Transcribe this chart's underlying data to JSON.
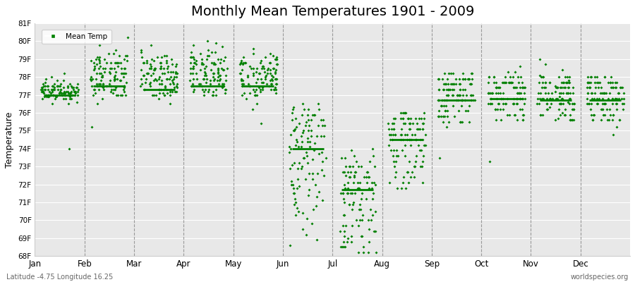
{
  "title": "Monthly Mean Temperatures 1901 - 2009",
  "ylabel": "Temperature",
  "xlabel_bottom_left": "Latitude -4.75 Longitude 16.25",
  "xlabel_bottom_right": "worldspecies.org",
  "ylim": [
    68,
    81
  ],
  "months": [
    "Jan",
    "Feb",
    "Mar",
    "Apr",
    "May",
    "Jun",
    "Jul",
    "Aug",
    "Sep",
    "Oct",
    "Nov",
    "Dec"
  ],
  "marker_color": "#008000",
  "background_color": "#ffffff",
  "plot_bg_color": "#e8e8e8",
  "title_fontsize": 14,
  "monthly_means": [
    77.0,
    77.5,
    77.3,
    77.5,
    77.5,
    74.0,
    71.7,
    74.5,
    76.7,
    76.8,
    76.7,
    76.7
  ],
  "monthly_data": {
    "Jan": [
      76.8,
      76.6,
      76.5,
      77.1,
      76.9,
      77.0,
      77.2,
      77.3,
      77.8,
      77.5,
      77.4,
      77.6,
      77.0,
      76.9,
      77.0,
      77.3,
      77.2,
      77.6,
      77.8,
      78.0,
      78.2,
      77.9,
      77.5,
      77.4,
      77.3,
      77.1,
      77.0,
      77.2,
      77.4,
      77.3,
      77.1,
      77.5,
      77.6,
      77.4,
      77.0,
      76.8,
      76.5,
      76.9,
      77.2,
      77.5,
      77.3,
      77.1,
      77.4,
      77.2,
      77.0,
      76.8,
      77.0,
      77.3,
      77.1,
      76.9,
      77.2,
      77.6,
      77.4,
      77.0,
      76.8,
      77.1,
      77.3,
      77.5,
      77.2,
      77.0,
      76.9,
      77.1,
      77.4,
      77.6,
      77.3,
      77.1,
      77.0,
      77.2,
      77.5,
      77.3,
      77.1,
      77.0,
      77.3,
      77.5,
      77.2,
      77.0,
      76.9,
      77.1,
      77.3,
      77.5,
      77.4,
      77.2,
      77.0,
      77.2,
      77.5,
      77.3,
      77.1,
      77.0,
      77.2,
      77.5,
      77.7,
      77.4,
      77.1,
      77.0,
      76.8,
      77.1,
      77.3,
      77.5,
      77.2,
      77.0,
      76.8,
      77.1,
      77.3,
      77.5,
      77.2,
      77.0,
      76.9,
      74.0,
      77.2
    ],
    "Feb": [
      77.0,
      77.5,
      78.2,
      79.2,
      78.8,
      78.5,
      78.0,
      77.8,
      77.5,
      77.4,
      77.2,
      77.0,
      77.5,
      78.0,
      78.5,
      79.0,
      78.8,
      78.5,
      78.2,
      78.0,
      77.8,
      77.5,
      77.3,
      77.1,
      77.4,
      77.7,
      78.1,
      78.5,
      78.8,
      79.0,
      79.2,
      78.9,
      78.6,
      78.3,
      78.0,
      77.8,
      77.5,
      77.3,
      77.6,
      77.9,
      78.2,
      78.5,
      78.8,
      79.0,
      79.3,
      80.2,
      79.8,
      79.5,
      79.2,
      78.9,
      78.6,
      78.3,
      78.0,
      77.8,
      77.5,
      77.3,
      77.0,
      76.8,
      76.5,
      75.2,
      77.1,
      77.4,
      77.8,
      78.2,
      78.5,
      78.8,
      79.1,
      78.8,
      78.5,
      78.2,
      77.9,
      77.6,
      77.3,
      77.0,
      77.3,
      77.6,
      77.9,
      78.2,
      78.5,
      78.8,
      79.1,
      78.8,
      78.5,
      78.2,
      77.9,
      77.6,
      77.3,
      77.0,
      77.2,
      77.5,
      77.8,
      78.1,
      78.4,
      78.7,
      79.0,
      79.3,
      78.9,
      78.6,
      78.3,
      77.9,
      77.6,
      77.3,
      77.0,
      77.3,
      77.6,
      77.9,
      78.2,
      78.5,
      78.8
    ],
    "Mar": [
      77.0,
      77.2,
      77.5,
      77.8,
      78.1,
      78.4,
      78.7,
      78.5,
      78.2,
      77.9,
      77.6,
      77.3,
      77.0,
      77.3,
      77.6,
      77.9,
      78.2,
      78.5,
      79.8,
      79.5,
      79.2,
      78.9,
      78.6,
      78.3,
      78.0,
      77.8,
      77.5,
      77.2,
      77.0,
      77.2,
      77.5,
      77.8,
      78.1,
      78.4,
      78.7,
      79.0,
      78.8,
      78.5,
      78.2,
      77.9,
      77.6,
      77.3,
      77.1,
      77.4,
      77.7,
      78.0,
      78.3,
      78.6,
      78.9,
      79.2,
      78.9,
      78.6,
      78.3,
      78.0,
      77.7,
      77.4,
      77.1,
      76.8,
      76.5,
      77.0,
      77.3,
      77.6,
      77.9,
      78.2,
      78.5,
      78.8,
      79.1,
      79.4,
      79.1,
      78.8,
      78.5,
      78.2,
      77.9,
      77.6,
      77.3,
      77.0,
      77.3,
      77.6,
      77.9,
      78.2,
      78.5,
      78.8,
      79.1,
      78.8,
      78.5,
      78.2,
      77.9,
      77.6,
      77.3,
      77.0,
      77.2,
      77.5,
      77.8,
      78.1,
      78.4,
      78.7,
      79.0,
      78.8,
      78.5,
      78.2,
      77.9,
      77.6,
      77.3,
      77.1,
      77.4,
      77.7,
      78.0,
      78.3,
      78.6
    ],
    "Apr": [
      77.0,
      77.3,
      77.6,
      77.9,
      78.2,
      78.5,
      78.8,
      79.1,
      79.4,
      79.7,
      79.9,
      80.0,
      79.8,
      79.5,
      79.2,
      78.9,
      78.6,
      78.3,
      78.0,
      77.8,
      77.5,
      77.2,
      77.0,
      77.3,
      77.6,
      77.9,
      78.2,
      78.5,
      78.8,
      79.1,
      79.4,
      79.1,
      78.8,
      78.5,
      78.2,
      77.9,
      77.6,
      77.3,
      77.0,
      77.3,
      77.6,
      77.9,
      78.2,
      78.5,
      78.8,
      79.1,
      79.4,
      79.1,
      78.8,
      78.5,
      78.2,
      77.9,
      77.6,
      77.3,
      77.0,
      77.2,
      77.5,
      77.8,
      78.1,
      78.4,
      78.7,
      79.0,
      78.8,
      78.5,
      78.2,
      77.9,
      77.6,
      77.3,
      77.1,
      77.4,
      77.7,
      78.0,
      78.3,
      78.6,
      78.9,
      79.2,
      79.0,
      78.7,
      78.4,
      78.1,
      77.8,
      77.5,
      77.2,
      77.5,
      77.8,
      78.1,
      78.4,
      78.7,
      79.0,
      79.3,
      79.0,
      78.7,
      78.4,
      78.1,
      77.8,
      77.5,
      77.2,
      77.5,
      77.8,
      78.1,
      78.4,
      78.7,
      79.0,
      78.8,
      78.5,
      78.2,
      77.9,
      77.6,
      77.3
    ],
    "May": [
      77.5,
      77.8,
      78.1,
      78.4,
      78.7,
      79.0,
      79.3,
      79.6,
      79.3,
      79.0,
      78.7,
      78.4,
      78.1,
      77.8,
      77.5,
      77.2,
      77.0,
      77.3,
      77.6,
      77.9,
      78.2,
      78.5,
      78.8,
      79.1,
      78.8,
      78.5,
      78.2,
      77.9,
      77.6,
      77.3,
      77.5,
      77.8,
      78.1,
      78.4,
      78.7,
      79.0,
      78.8,
      78.5,
      78.2,
      77.9,
      77.6,
      77.3,
      77.1,
      77.4,
      77.7,
      78.0,
      78.3,
      78.6,
      78.9,
      79.2,
      78.9,
      78.6,
      78.3,
      78.0,
      77.7,
      77.4,
      77.1,
      76.8,
      76.5,
      76.2,
      75.4,
      77.0,
      77.3,
      77.6,
      77.9,
      78.2,
      78.5,
      78.8,
      79.1,
      78.8,
      78.5,
      78.2,
      77.9,
      77.6,
      77.3,
      77.0,
      77.3,
      77.6,
      77.9,
      78.2,
      78.5,
      78.8,
      79.1,
      78.8,
      78.5,
      78.2,
      77.9,
      77.6,
      77.3,
      77.0,
      77.2,
      77.5,
      77.8,
      78.1,
      78.4,
      78.7,
      79.0,
      78.8,
      78.5,
      78.2,
      77.9,
      77.6,
      77.3,
      77.1,
      77.4,
      77.7,
      78.0,
      78.3,
      78.6
    ],
    "Jun": [
      76.5,
      76.2,
      75.9,
      75.6,
      75.3,
      75.0,
      74.7,
      74.4,
      74.1,
      73.8,
      73.5,
      73.2,
      72.9,
      72.6,
      72.3,
      72.0,
      71.8,
      71.5,
      74.1,
      74.4,
      74.7,
      75.0,
      75.3,
      75.6,
      75.9,
      76.2,
      76.5,
      76.2,
      75.9,
      75.6,
      75.3,
      75.0,
      74.7,
      74.4,
      74.1,
      73.8,
      73.5,
      73.2,
      72.9,
      72.6,
      72.3,
      72.0,
      71.8,
      71.5,
      71.2,
      70.9,
      70.6,
      70.3,
      73.0,
      73.3,
      73.6,
      73.9,
      74.2,
      74.5,
      74.8,
      75.1,
      75.4,
      75.7,
      76.0,
      76.3,
      75.5,
      75.2,
      74.9,
      74.6,
      74.3,
      74.0,
      73.7,
      73.4,
      73.1,
      72.8,
      72.5,
      72.2,
      71.9,
      71.6,
      71.3,
      71.0,
      70.7,
      70.4,
      70.1,
      69.8,
      69.5,
      69.2,
      68.9,
      68.6,
      70.5,
      70.8,
      71.1,
      71.4,
      71.7,
      72.0,
      72.3,
      72.6,
      72.9,
      73.2,
      73.5,
      73.8,
      74.1,
      74.4,
      74.7,
      75.0,
      75.3,
      75.6,
      75.9,
      76.2,
      75.9,
      75.6,
      75.3,
      75.0,
      74.7
    ],
    "Jul": [
      71.5,
      71.2,
      70.9,
      70.6,
      70.3,
      70.0,
      69.7,
      69.4,
      69.1,
      68.8,
      68.5,
      71.0,
      71.5,
      72.0,
      72.5,
      73.0,
      73.5,
      74.0,
      73.5,
      73.0,
      72.5,
      72.0,
      71.5,
      71.0,
      70.5,
      70.0,
      69.5,
      69.0,
      68.5,
      68.2,
      71.5,
      71.8,
      72.1,
      72.4,
      72.7,
      73.0,
      72.7,
      72.4,
      72.1,
      71.8,
      71.5,
      71.2,
      70.9,
      70.6,
      70.3,
      70.0,
      69.7,
      69.4,
      69.1,
      68.8,
      68.5,
      68.2,
      71.5,
      71.8,
      72.1,
      72.4,
      72.7,
      73.0,
      73.3,
      73.6,
      73.9,
      73.6,
      73.3,
      73.0,
      72.7,
      72.4,
      72.1,
      71.8,
      71.5,
      71.2,
      70.9,
      70.6,
      70.3,
      70.0,
      69.7,
      69.4,
      69.1,
      68.8,
      68.5,
      68.2,
      71.5,
      71.8,
      72.1,
      72.4,
      72.7,
      73.0,
      72.7,
      72.4,
      72.1,
      71.8,
      71.5,
      71.2,
      70.9,
      70.6,
      70.3,
      70.0,
      69.7,
      69.4,
      69.1,
      68.8,
      68.5,
      68.2,
      71.5,
      71.8,
      72.1,
      72.4,
      72.7,
      73.0,
      72.7
    ],
    "Aug": [
      74.5,
      74.8,
      75.1,
      75.4,
      75.7,
      76.0,
      75.7,
      75.4,
      75.1,
      74.8,
      74.5,
      74.2,
      73.9,
      73.6,
      73.3,
      73.0,
      72.7,
      72.4,
      72.1,
      71.8,
      74.5,
      74.8,
      75.1,
      75.4,
      75.7,
      76.0,
      75.7,
      75.4,
      75.1,
      74.8,
      74.5,
      74.2,
      73.9,
      73.6,
      73.3,
      73.0,
      74.5,
      74.8,
      75.1,
      75.4,
      75.7,
      76.0,
      75.7,
      75.4,
      75.1,
      74.8,
      74.5,
      74.2,
      73.9,
      73.6,
      73.3,
      73.0,
      72.7,
      72.4,
      72.1,
      74.5,
      74.8,
      75.1,
      75.4,
      75.7,
      76.0,
      75.7,
      75.4,
      75.1,
      74.8,
      74.5,
      74.2,
      73.9,
      73.6,
      73.3,
      73.0,
      72.7,
      72.4,
      72.1,
      71.8,
      74.5,
      74.8,
      75.1,
      75.4,
      75.7,
      76.0,
      75.7,
      75.4,
      75.1,
      74.8,
      74.5,
      74.2,
      73.9,
      73.6,
      73.3,
      73.0,
      72.7,
      72.4,
      72.1,
      71.8,
      74.5,
      74.8,
      75.1,
      75.4,
      75.7,
      76.0,
      75.7,
      75.4,
      75.1,
      74.8,
      74.5,
      74.2,
      73.9,
      73.6
    ],
    "Sep": [
      76.7,
      77.0,
      77.3,
      77.6,
      77.9,
      78.2,
      77.9,
      77.6,
      77.3,
      77.0,
      76.7,
      76.4,
      76.1,
      75.8,
      75.5,
      75.2,
      76.7,
      77.0,
      77.3,
      77.6,
      77.9,
      78.2,
      77.9,
      77.6,
      77.3,
      77.0,
      76.7,
      76.4,
      76.1,
      75.8,
      76.7,
      77.0,
      77.3,
      77.6,
      77.9,
      78.2,
      77.9,
      77.6,
      77.3,
      77.0,
      76.7,
      76.4,
      76.1,
      75.8,
      75.5,
      76.7,
      77.0,
      77.3,
      77.6,
      77.9,
      78.2,
      77.9,
      77.6,
      77.3,
      77.0,
      76.7,
      76.4,
      76.1,
      75.8,
      75.5,
      76.7,
      77.0,
      77.3,
      77.6,
      77.9,
      78.2,
      77.9,
      77.6,
      77.3,
      77.0,
      76.7,
      76.4,
      76.1,
      75.8,
      75.5,
      76.7,
      77.0,
      77.3,
      77.6,
      77.9,
      78.2,
      77.9,
      77.6,
      77.3,
      77.0,
      76.7,
      76.4,
      76.1,
      75.8,
      75.5,
      76.7,
      77.0,
      77.3,
      77.6,
      77.9,
      78.2,
      77.9,
      77.6,
      77.3,
      77.0,
      76.7,
      76.4,
      76.1,
      75.8,
      75.5,
      73.5,
      76.7,
      77.0,
      77.3
    ],
    "Oct": [
      76.5,
      76.8,
      77.1,
      77.4,
      77.7,
      78.0,
      77.7,
      77.4,
      77.1,
      76.8,
      76.5,
      76.2,
      75.9,
      75.6,
      76.5,
      76.8,
      77.1,
      77.4,
      77.7,
      78.0,
      78.3,
      78.6,
      78.3,
      78.0,
      77.7,
      77.4,
      77.1,
      76.8,
      76.5,
      76.2,
      76.5,
      76.8,
      77.1,
      77.4,
      77.7,
      78.0,
      77.7,
      77.4,
      77.1,
      76.8,
      76.5,
      76.2,
      75.9,
      75.6,
      76.5,
      76.8,
      77.1,
      77.4,
      77.7,
      78.0,
      77.7,
      77.4,
      77.1,
      76.8,
      76.5,
      76.2,
      75.9,
      73.3,
      76.5,
      76.8,
      77.1,
      77.4,
      77.7,
      78.0,
      77.7,
      77.4,
      77.1,
      76.8,
      76.5,
      76.2,
      75.9,
      75.6,
      76.5,
      76.8,
      77.1,
      77.4,
      77.7,
      78.0,
      77.7,
      77.4,
      77.1,
      76.8,
      76.5,
      76.2,
      75.9,
      75.6,
      76.5,
      76.8,
      77.1,
      77.4,
      77.7,
      78.0,
      77.7,
      77.4,
      77.1,
      76.8,
      76.5,
      76.2,
      75.9,
      75.6,
      76.5,
      76.8,
      77.1,
      77.4,
      77.7,
      78.0,
      77.7,
      77.4,
      77.1
    ],
    "Nov": [
      76.5,
      76.8,
      77.1,
      77.4,
      77.7,
      78.0,
      77.7,
      77.4,
      77.1,
      76.8,
      76.5,
      76.2,
      75.9,
      75.6,
      76.5,
      76.8,
      77.1,
      77.4,
      77.7,
      78.0,
      77.7,
      77.4,
      77.1,
      76.8,
      76.5,
      76.2,
      75.9,
      75.6,
      76.5,
      76.8,
      77.1,
      77.4,
      77.7,
      78.0,
      77.7,
      77.4,
      77.1,
      76.8,
      76.5,
      76.2,
      75.9,
      75.6,
      79.0,
      78.7,
      78.4,
      78.1,
      77.8,
      77.5,
      77.2,
      76.9,
      76.6,
      76.3,
      76.0,
      75.7,
      76.5,
      76.8,
      77.1,
      77.4,
      77.7,
      78.0,
      77.7,
      77.4,
      77.1,
      76.8,
      76.5,
      76.2,
      75.9,
      75.6,
      76.5,
      76.8,
      77.1,
      77.4,
      77.7,
      78.0,
      77.7,
      77.4,
      77.1,
      76.8,
      76.5,
      76.2,
      75.9,
      75.6,
      76.5,
      76.8,
      77.1,
      77.4,
      77.7,
      78.0,
      77.7,
      77.4,
      77.1,
      76.8,
      76.5,
      76.2,
      75.9,
      75.6,
      76.5,
      76.8,
      77.1,
      77.4,
      77.7,
      78.0,
      77.7,
      77.4,
      77.1,
      76.8,
      76.5,
      76.2,
      75.9
    ],
    "Dec": [
      76.5,
      76.8,
      77.1,
      77.4,
      77.7,
      78.0,
      77.7,
      77.4,
      77.1,
      76.8,
      76.5,
      76.2,
      75.9,
      75.6,
      76.5,
      76.8,
      77.1,
      77.4,
      77.7,
      78.0,
      77.7,
      77.4,
      77.1,
      76.8,
      76.5,
      76.2,
      75.9,
      75.6,
      76.5,
      76.8,
      77.1,
      77.4,
      77.7,
      78.0,
      77.7,
      77.4,
      77.1,
      76.8,
      76.5,
      76.2,
      75.9,
      75.6,
      76.5,
      76.8,
      77.1,
      77.4,
      77.7,
      78.0,
      77.7,
      77.4,
      77.1,
      76.8,
      76.5,
      76.2,
      75.9,
      75.6,
      76.5,
      76.8,
      77.1,
      77.4,
      77.7,
      78.0,
      77.7,
      77.4,
      77.1,
      76.8,
      76.5,
      76.2,
      75.9,
      75.6,
      76.5,
      76.8,
      77.1,
      77.4,
      77.7,
      78.0,
      77.7,
      77.4,
      77.1,
      76.8,
      76.5,
      76.2,
      75.9,
      75.6,
      76.5,
      76.8,
      77.1,
      77.4,
      77.7,
      78.0,
      77.7,
      77.4,
      77.1,
      76.8,
      76.5,
      76.2,
      75.9,
      75.6,
      78.0,
      77.7,
      77.4,
      77.1,
      76.8,
      76.5,
      76.2,
      75.9,
      75.6,
      74.8,
      75.2
    ]
  }
}
